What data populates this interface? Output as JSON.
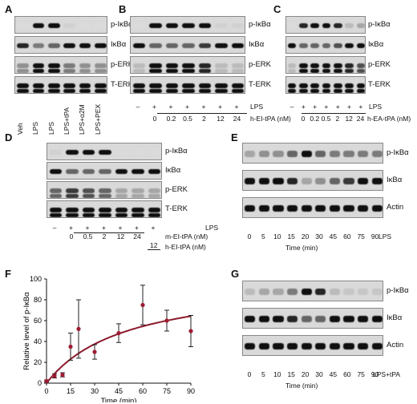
{
  "panels": {
    "A": {
      "label": "A",
      "rows": [
        "p-IκBα",
        "IκBα",
        "p-ERK",
        "T-ERK"
      ],
      "lanes": [
        "Veh",
        "LPS",
        "LPS",
        "LPS+tPA",
        "LPS+α2M",
        "LPS+PEX"
      ]
    },
    "B": {
      "label": "B",
      "rows": [
        "p-IκBα",
        "IκBα",
        "p-ERK",
        "T-ERK"
      ],
      "lps_label": "LPS",
      "lps_signs": [
        "–",
        "+",
        "+",
        "+",
        "+",
        "+",
        "+"
      ],
      "doses": [
        "0",
        "0.2",
        "0.5",
        "2",
        "12",
        "24"
      ],
      "dose_label": "h-EI-tPA (nM)"
    },
    "C": {
      "label": "C",
      "rows": [
        "p-IκBα",
        "IκBα",
        "p-ERK",
        "T-ERK"
      ],
      "lps_label": "LPS",
      "lps_signs": [
        "–",
        "+",
        "+",
        "+",
        "+",
        "+",
        "+"
      ],
      "doses": [
        "0",
        "0.2",
        "0.5",
        "2",
        "12",
        "24"
      ],
      "dose_label": "h-EA-tPA (nM)"
    },
    "D": {
      "label": "D",
      "rows": [
        "p-IκBα",
        "IκBα",
        "p-ERK",
        "T-ERK"
      ],
      "lps_label": "LPS",
      "lps_signs": [
        "–",
        "+",
        "+",
        "+",
        "+",
        "+",
        "+"
      ],
      "doses": [
        "0",
        "0.5",
        "2",
        "12",
        "24"
      ],
      "dose_label": "m-EI-tPA (nM)",
      "extra_dose": "12",
      "extra_label": "h-EI-tPA (nM)"
    },
    "E": {
      "label": "E",
      "rows": [
        "p-IκBα",
        "IκBα",
        "Actin"
      ],
      "times": [
        "0",
        "5",
        "10",
        "15",
        "20",
        "30",
        "45",
        "60",
        "75",
        "90"
      ],
      "treatment": "LPS",
      "time_label": "Time (min)"
    },
    "F": {
      "label": "F"
    },
    "G": {
      "label": "G",
      "rows": [
        "p-IκBα",
        "IκBα",
        "Actin"
      ],
      "times": [
        "0",
        "5",
        "10",
        "15",
        "20",
        "30",
        "45",
        "60",
        "75",
        "90"
      ],
      "treatment": "LPS+tPA",
      "time_label": "Time (min)"
    }
  },
  "chart_data": {
    "type": "scatter",
    "xlabel": "Time (min)",
    "ylabel": "Relative level of p-IκBα",
    "xlim": [
      0,
      90
    ],
    "ylim": [
      0,
      100
    ],
    "xticks": [
      "0",
      "15",
      "30",
      "45",
      "60",
      "75",
      "90"
    ],
    "yticks": [
      "0",
      "20",
      "40",
      "60",
      "80",
      "100"
    ],
    "x": [
      0,
      5,
      10,
      15,
      20,
      30,
      45,
      60,
      75,
      90
    ],
    "y": [
      2,
      7,
      8,
      35,
      52,
      30,
      48,
      75,
      60,
      50
    ],
    "err": [
      1,
      2,
      2,
      13,
      28,
      7,
      9,
      19,
      10,
      15
    ],
    "fit": {
      "vmax": 100,
      "k": 50
    },
    "point_color": "#9e1b32",
    "curve_color": "#8b1a2b"
  }
}
